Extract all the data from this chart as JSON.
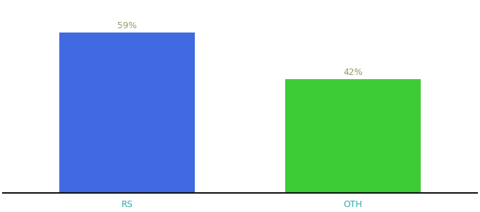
{
  "categories": [
    "RS",
    "OTH"
  ],
  "values": [
    59,
    42
  ],
  "bar_colors": [
    "#4169e1",
    "#3dcc35"
  ],
  "label_color": "#999966",
  "label_fontsize": 9,
  "tick_label_color": "#33aaaa",
  "tick_fontsize": 9,
  "bar_width": 0.6,
  "ylim": [
    0,
    70
  ],
  "background_color": "#ffffff",
  "spine_color": "#111111",
  "label_format": "{}%"
}
